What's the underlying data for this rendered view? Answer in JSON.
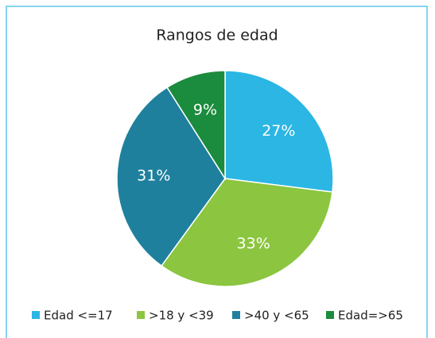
{
  "chart_data": {
    "type": "pie",
    "title": "Rangos de edad",
    "categories": [
      "Edad <=17",
      ">18 y <39",
      ">40 y <65",
      "Edad=>65"
    ],
    "values": [
      27,
      33,
      31,
      9
    ],
    "value_labels": [
      "27%",
      "33%",
      "31%",
      "9%"
    ],
    "colors": [
      "#2bb6e4",
      "#8cc53f",
      "#1f809d",
      "#1b8b3d"
    ],
    "legend": "bottom"
  }
}
